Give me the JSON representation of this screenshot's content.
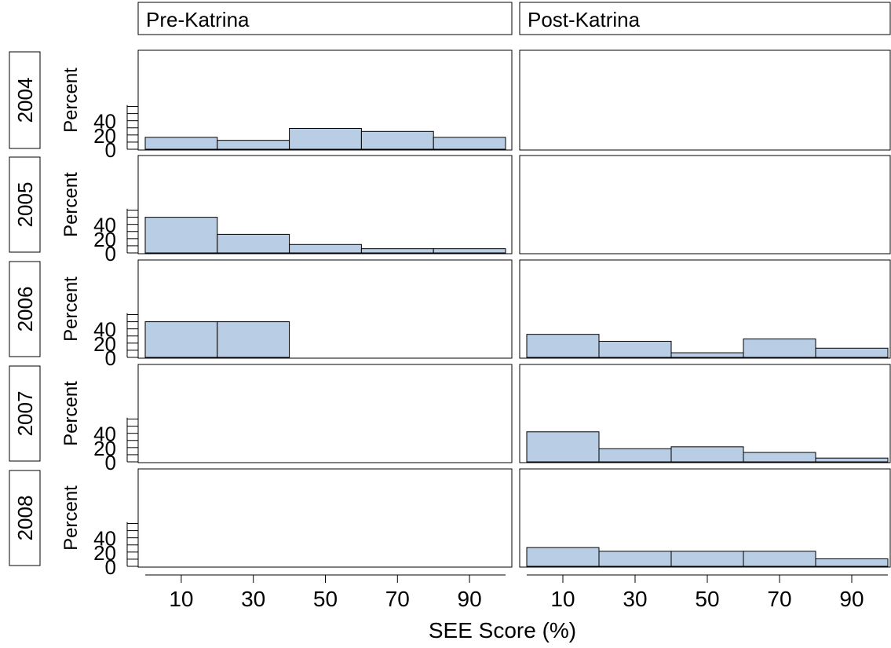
{
  "chart_data": {
    "type": "bar",
    "xlabel": "SEE Score (%)",
    "ylabel": "Percent",
    "xlim": [
      0,
      100
    ],
    "ylim": [
      0,
      65
    ],
    "bins": [
      0,
      20,
      40,
      60,
      80,
      100
    ],
    "xticks": [
      10,
      30,
      50,
      70,
      90
    ],
    "yticks": [
      0,
      20,
      40
    ],
    "columns": [
      "Pre-Katrina",
      "Post-Katrina"
    ],
    "rows": [
      "2004",
      "2005",
      "2006",
      "2007",
      "2008"
    ],
    "bar_color": "#b9cde5",
    "panels": [
      {
        "row": "2004",
        "column": "Pre-Katrina",
        "values": [
          16.7,
          12.5,
          29.2,
          25.0,
          16.7
        ]
      },
      {
        "row": "2004",
        "column": "Post-Katrina",
        "values": []
      },
      {
        "row": "2005",
        "column": "Pre-Katrina",
        "values": [
          50.0,
          26.0,
          11.8,
          5.9,
          5.9
        ]
      },
      {
        "row": "2005",
        "column": "Post-Katrina",
        "values": []
      },
      {
        "row": "2006",
        "column": "Pre-Katrina",
        "values": [
          50.0,
          50.0,
          0,
          0,
          0
        ]
      },
      {
        "row": "2006",
        "column": "Post-Katrina",
        "values": [
          32.3,
          22.6,
          6.5,
          25.8,
          12.9
        ]
      },
      {
        "row": "2007",
        "column": "Pre-Katrina",
        "values": []
      },
      {
        "row": "2007",
        "column": "Post-Katrina",
        "values": [
          42.1,
          18.4,
          21.1,
          13.2,
          5.3
        ]
      },
      {
        "row": "2008",
        "column": "Pre-Katrina",
        "values": []
      },
      {
        "row": "2008",
        "column": "Post-Katrina",
        "values": [
          26.3,
          21.1,
          21.1,
          21.1,
          10.5
        ]
      }
    ]
  }
}
